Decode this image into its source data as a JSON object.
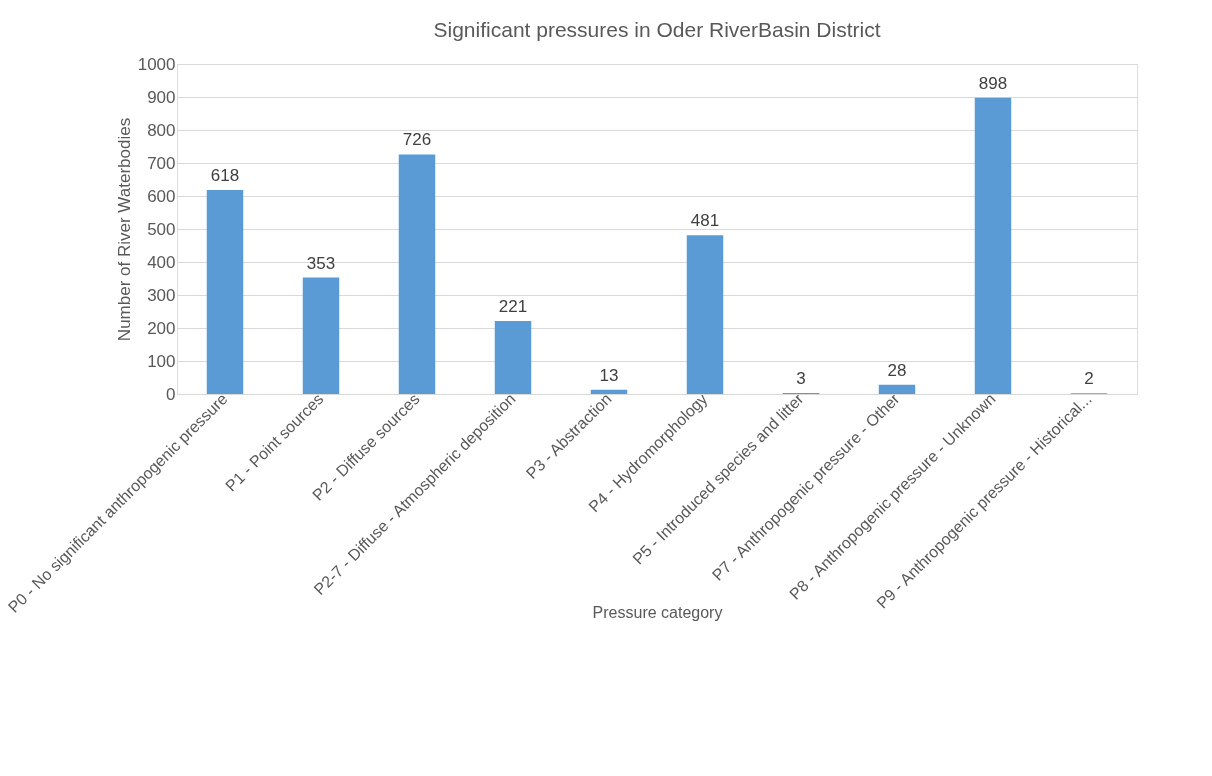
{
  "chart_data": {
    "type": "bar",
    "title": "Significant pressures in Oder RiverBasin District",
    "xlabel": "Pressure category",
    "ylabel": "Number of River Waterbodies",
    "categories": [
      "P0 - No significant anthropogenic pressure",
      "P1 - Point sources",
      "P2 - Diffuse sources",
      "P2-7 - Diffuse - Atmospheric deposition",
      "P3 - Abstraction",
      "P4 - Hydromorphology",
      "P5 - Introduced species and litter",
      "P7 - Anthropogenic pressure - Other",
      "P8 - Anthropogenic pressure - Unknown",
      "P9 - Anthropogenic pressure - Historical..."
    ],
    "values": [
      618,
      353,
      726,
      221,
      13,
      481,
      3,
      28,
      898,
      2
    ],
    "color": "#5b9bd5",
    "ylim": [
      0,
      1000
    ],
    "yticks": [
      0,
      100,
      200,
      300,
      400,
      500,
      600,
      700,
      800,
      900,
      1000
    ],
    "grid": "y",
    "data_labels": true
  }
}
